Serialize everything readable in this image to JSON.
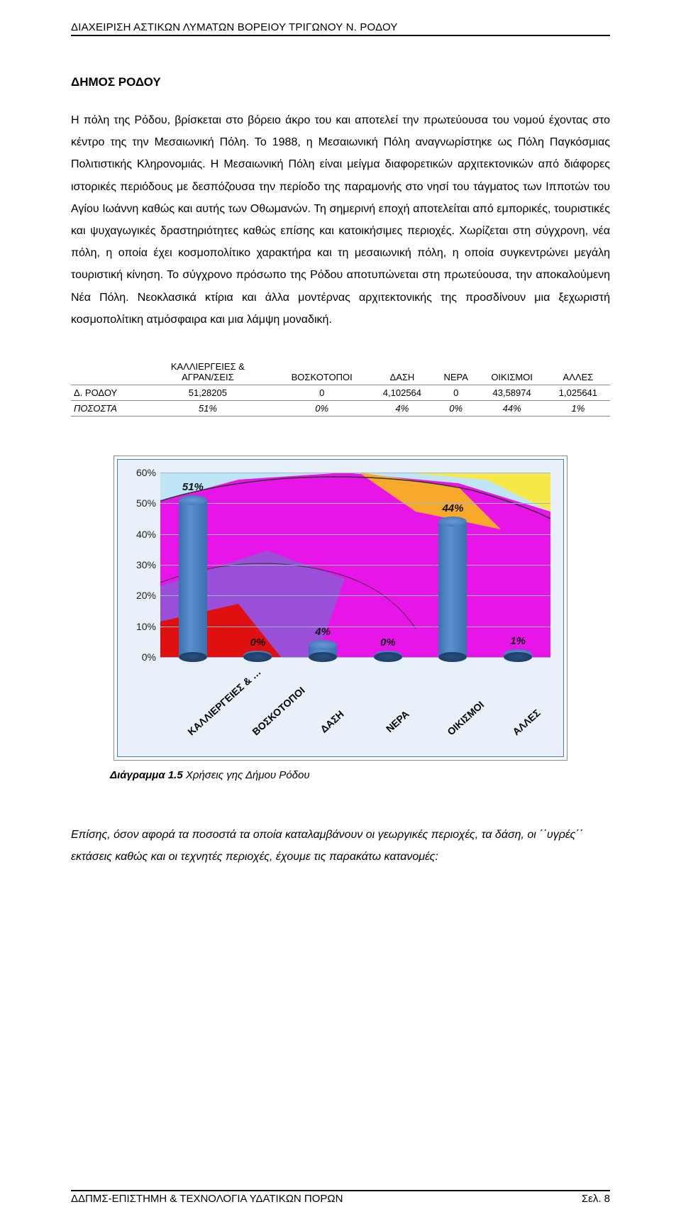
{
  "header": "ΔΙΑΧΕΙΡΙΣΗ ΑΣΤΙΚΩΝ ΛΥΜΑΤΩΝ ΒΟΡΕΙΟΥ ΤΡΙΓΩΝΟΥ Ν. ΡΟΔΟΥ",
  "section_title": "ΔΗΜΟΣ  ΡΟΔΟΥ",
  "body": "Η πόλη της Ρόδου, βρίσκεται στο βόρειο άκρο του και αποτελεί την πρωτεύουσα του νομού έχοντας στο κέντρο της την Μεσαιωνική Πόλη. Το 1988, η Μεσαιωνική Πόλη αναγνωρίστηκε ως Πόλη Παγκόσμιας Πολιτιστικής Κληρονομιάς. Η Μεσαιωνική Πόλη είναι μείγμα διαφορετικών αρχιτεκτονικών από διάφορες ιστορικές περιόδους με δεσπόζουσα την περίοδο της παραμονής στο νησί του τάγματος των Ιπποτών του Αγίου Ιωάννη καθώς και αυτής των Οθωμανών. Τη σημερινή εποχή αποτελείται από εμπορικές, τουριστικές και ψυχαγωγικές δραστηριότητες καθώς επίσης και κατοικήσιμες περιοχές. Χωρίζεται στη σύγχρονη, νέα πόλη, η οποία έχει κοσμοπολίτικο χαρακτήρα και τη μεσαιωνική πόλη, η οποία συγκεντρώνει μεγάλη τουριστική κίνηση. Το σύγχρονο πρόσωπο της Ρόδου αποτυπώνεται στη πρωτεύουσα, την αποκαλούμενη Νέα Πόλη. Νεοκλασικά κτίρια και άλλα μοντέρνας αρχιτεκτονικής της προσδίνουν μια ξεχωριστή κοσμοπολίτικη ατμόσφαιρα και μια λάμψη μοναδική.",
  "table": {
    "columns": [
      "",
      "ΚΑΛΛΙΕΡΓΕΙΕΣ & ΑΓΡΑΝ/ΣΕΙΣ",
      "ΒΟΣΚΟΤΟΠΟΙ",
      "ΔΑΣΗ",
      "ΝΕΡΑ",
      "ΟΙΚΙΣΜΟΙ",
      "ΑΛΛΕΣ"
    ],
    "rows": [
      [
        "Δ. ΡΟΔΟΥ",
        "51,28205",
        "0",
        "4,102564",
        "0",
        "43,58974",
        "1,025641"
      ],
      [
        "ΠΟΣΟΣΤΑ",
        "51%",
        "0%",
        "4%",
        "0%",
        "44%",
        "1%"
      ]
    ]
  },
  "chart": {
    "type": "bar",
    "categories": [
      "ΚΑΛΛΙΕΡΓΕΙΕΣ & …",
      "ΒΟΣΚΟΤΟΠΟΙ",
      "ΔΑΣΗ",
      "ΝΕΡΑ",
      "ΟΙΚΙΣΜΟΙ",
      "ΑΛΛΕΣ"
    ],
    "values": [
      51,
      0,
      4,
      0,
      44,
      1
    ],
    "value_labels": [
      "51%",
      "0%",
      "4%",
      "0%",
      "44%",
      "1%"
    ],
    "y_ticks": [
      0,
      10,
      20,
      30,
      40,
      50,
      60
    ],
    "y_tick_labels": [
      "0%",
      "10%",
      "20%",
      "30%",
      "40%",
      "50%",
      "60%"
    ],
    "ylim_max": 60,
    "bar_color_front": "#3a6fb0",
    "bar_color_top": "#6a9ad6",
    "grid_color": "#9db7d8",
    "plot_bg": "#e8f0fa",
    "frame_border": "#4a7ebb",
    "label_fontsize": 14,
    "value_fontweight": "bold",
    "value_fontstyle": "italic",
    "map_colors": {
      "magenta": "#e815e8",
      "purple": "#9a4fd9",
      "red": "#e01010",
      "orange": "#f7a92b",
      "yellow": "#f7e84a",
      "water": "#bfe5f7"
    }
  },
  "caption_lead": "Διάγραμμα 1.5",
  "caption_rest": " Χρήσεις γης Δήμου Ρόδου",
  "closing": "Επίσης, όσον αφορά τα ποσοστά τα οποία καταλαμβάνουν οι γεωργικές περιοχές, τα δάση, οι ΄΄υγρές΄΄ εκτάσεις καθώς και οι τεχνητές περιοχές, έχουμε τις παρακάτω κατανομές:",
  "footer_left": "ΔΔΠΜΣ-ΕΠΙΣΤΗΜΗ & ΤΕΧΝΟΛΟΓΙΑ ΥΔΑΤΙΚΩΝ ΠΟΡΩΝ",
  "footer_right": "Σελ.  8"
}
